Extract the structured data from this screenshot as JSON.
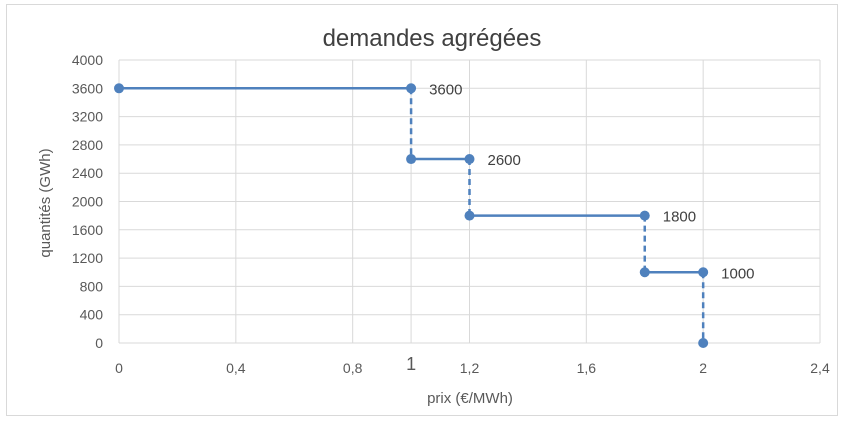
{
  "chart_data": {
    "type": "line",
    "title": "demandes agrégées",
    "xlabel": "prix (€/MWh)",
    "ylabel": "quantités (GWh)",
    "xlim": [
      0,
      2.4
    ],
    "ylim": [
      0,
      4000
    ],
    "x_ticks": [
      "0",
      "0,4",
      "0,8",
      "1",
      "1,2",
      "1,6",
      "2",
      "2,4"
    ],
    "x_tick_values": [
      0,
      0.4,
      0.8,
      1.0,
      1.2,
      1.6,
      2.0,
      2.4
    ],
    "y_ticks": [
      "0",
      "400",
      "800",
      "1200",
      "1600",
      "2000",
      "2400",
      "2800",
      "3200",
      "3600",
      "4000"
    ],
    "y_tick_values": [
      0,
      400,
      800,
      1200,
      1600,
      2000,
      2400,
      2800,
      3200,
      3600,
      4000
    ],
    "grid": true,
    "legend": "none",
    "color": "#4f81bd",
    "points": [
      {
        "x": 0,
        "y": 3600
      },
      {
        "x": 1.0,
        "y": 3600
      },
      {
        "x": 1.0,
        "y": 2600
      },
      {
        "x": 1.2,
        "y": 2600
      },
      {
        "x": 1.2,
        "y": 1800
      },
      {
        "x": 1.8,
        "y": 1800
      },
      {
        "x": 1.8,
        "y": 1000
      },
      {
        "x": 2.0,
        "y": 1000
      },
      {
        "x": 2.0,
        "y": 0
      }
    ],
    "segments": [
      {
        "from": [
          0,
          3600
        ],
        "to": [
          1.0,
          3600
        ],
        "style": "solid"
      },
      {
        "from": [
          1.0,
          3600
        ],
        "to": [
          1.0,
          2600
        ],
        "style": "dashed"
      },
      {
        "from": [
          1.0,
          2600
        ],
        "to": [
          1.2,
          2600
        ],
        "style": "solid"
      },
      {
        "from": [
          1.2,
          2600
        ],
        "to": [
          1.2,
          1800
        ],
        "style": "dashed"
      },
      {
        "from": [
          1.2,
          1800
        ],
        "to": [
          1.8,
          1800
        ],
        "style": "solid"
      },
      {
        "from": [
          1.8,
          1800
        ],
        "to": [
          1.8,
          1000
        ],
        "style": "dashed"
      },
      {
        "from": [
          1.8,
          1000
        ],
        "to": [
          2.0,
          1000
        ],
        "style": "solid"
      },
      {
        "from": [
          2.0,
          1000
        ],
        "to": [
          2.0,
          0
        ],
        "style": "dashed"
      }
    ],
    "data_labels": [
      {
        "x": 1.0,
        "y": 3600,
        "text": "3600"
      },
      {
        "x": 1.2,
        "y": 2600,
        "text": "2600"
      },
      {
        "x": 1.8,
        "y": 1800,
        "text": "1800"
      },
      {
        "x": 2.0,
        "y": 1000,
        "text": "1000"
      }
    ]
  }
}
